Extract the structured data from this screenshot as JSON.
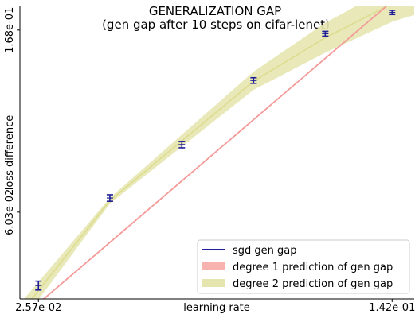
{
  "chart_data": {
    "type": "line",
    "title": "GENERALIZATION GAP",
    "subtitle": "(gen gap after 10 steps on cifar-lenet)",
    "xlabel": "learning rate",
    "ylabel": "loss difference",
    "x_scale": "log",
    "y_scale": "log",
    "xlim": [
      0.0235,
      0.158
    ],
    "ylim": [
      0.037,
      0.192
    ],
    "x_ticks": [
      {
        "value": 0.0257,
        "label": "2.57e-02"
      },
      {
        "value": 0.142,
        "label": "1.42e-01"
      }
    ],
    "y_ticks": [
      {
        "value": 0.0603,
        "label": "6.03e-02"
      },
      {
        "value": 0.168,
        "label": "1.68e-01"
      }
    ],
    "grid": false,
    "legend_position": "lower-right",
    "series": [
      {
        "name": "sgd gen gap",
        "kind": "points_with_error_bars",
        "color": "#1f1f9a",
        "x": [
          0.0257,
          0.0363,
          0.0514,
          0.0727,
          0.1028,
          0.142
        ],
        "y": [
          0.0399,
          0.0653,
          0.0882,
          0.1265,
          0.1646,
          0.1856
        ],
        "y_err": [
          0.001,
          0.0012,
          0.0016,
          0.002,
          0.0022,
          0.0022
        ]
      },
      {
        "name": "degree 1 prediction of gen gap",
        "kind": "line",
        "color": "#f39a98",
        "band_color": "#f8b3b0",
        "x": [
          0.0235,
          0.138
        ],
        "y": [
          0.033,
          0.192
        ]
      },
      {
        "name": "degree 2 prediction of gen gap",
        "kind": "band",
        "color": "#dcdc8c",
        "band_color": "#e5e5b0",
        "x": [
          0.0235,
          0.0363,
          0.0727,
          0.1028,
          0.142,
          0.158
        ],
        "y_center": [
          0.034,
          0.0643,
          0.126,
          0.161,
          0.195,
          0.205
        ],
        "y_lower": [
          0.032,
          0.0633,
          0.12,
          0.148,
          0.176,
          0.183
        ],
        "y_upper": [
          0.036,
          0.0653,
          0.133,
          0.175,
          0.215,
          0.228
        ]
      }
    ]
  }
}
